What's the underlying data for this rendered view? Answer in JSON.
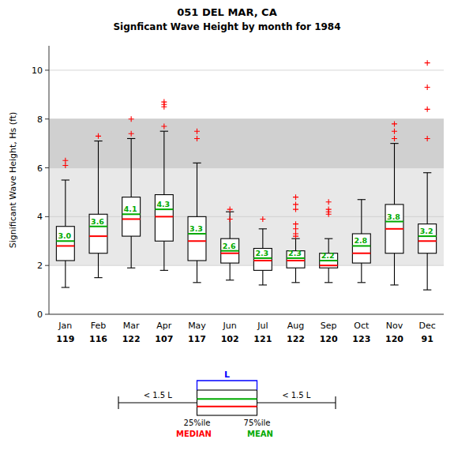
{
  "chart_data": {
    "type": "box",
    "title": "051   DEL MAR, CA",
    "subtitle": "Signficant Wave Height by month for 1984",
    "y_label": "Significant Wave Height, Hs (ft)",
    "categories": [
      "Jan",
      "Feb",
      "Mar",
      "Apr",
      "May",
      "Jun",
      "Jul",
      "Aug",
      "Sep",
      "Oct",
      "Nov",
      "Dec"
    ],
    "counts": [
      119,
      116,
      122,
      107,
      117,
      102,
      121,
      122,
      120,
      123,
      120,
      91
    ],
    "boxes": [
      {
        "q1": 2.2,
        "median": 2.8,
        "q3": 3.6,
        "whislo": 1.1,
        "whishi": 5.5,
        "mean": 3.0,
        "mean_label": "3.0",
        "fliers": [
          6.3,
          6.1
        ]
      },
      {
        "q1": 2.5,
        "median": 3.2,
        "q3": 4.1,
        "whislo": 1.5,
        "whishi": 7.1,
        "mean": 3.6,
        "mean_label": "3.6",
        "fliers": [
          7.3
        ]
      },
      {
        "q1": 3.2,
        "median": 3.9,
        "q3": 4.8,
        "whislo": 1.9,
        "whishi": 7.2,
        "mean": 4.1,
        "mean_label": "4.1",
        "fliers": [
          7.4,
          8.0
        ]
      },
      {
        "q1": 3.0,
        "median": 4.0,
        "q3": 4.9,
        "whislo": 1.8,
        "whishi": 7.5,
        "mean": 4.3,
        "mean_label": "4.3",
        "fliers": [
          7.7,
          8.5,
          8.6,
          8.7
        ]
      },
      {
        "q1": 2.2,
        "median": 3.0,
        "q3": 4.0,
        "whislo": 1.3,
        "whishi": 6.2,
        "mean": 3.3,
        "mean_label": "3.3",
        "fliers": [
          7.5,
          7.2
        ]
      },
      {
        "q1": 2.1,
        "median": 2.5,
        "q3": 3.1,
        "whislo": 1.4,
        "whishi": 4.2,
        "mean": 2.6,
        "mean_label": "2.6",
        "fliers": [
          4.3,
          3.9
        ]
      },
      {
        "q1": 1.8,
        "median": 2.2,
        "q3": 2.7,
        "whislo": 1.2,
        "whishi": 3.5,
        "mean": 2.3,
        "mean_label": "2.3",
        "fliers": [
          3.9
        ]
      },
      {
        "q1": 1.9,
        "median": 2.2,
        "q3": 2.6,
        "whislo": 1.3,
        "whishi": 3.1,
        "mean": 2.3,
        "mean_label": "2.3",
        "fliers": [
          4.8,
          4.5,
          4.3,
          3.7,
          3.5,
          3.3,
          3.2
        ]
      },
      {
        "q1": 1.9,
        "median": 2.0,
        "q3": 2.5,
        "whislo": 1.3,
        "whishi": 3.1,
        "mean": 2.2,
        "mean_label": "2.2",
        "fliers": [
          4.6,
          4.3,
          4.2,
          4.1
        ]
      },
      {
        "q1": 2.1,
        "median": 2.5,
        "q3": 3.3,
        "whislo": 1.3,
        "whishi": 4.7,
        "mean": 2.8,
        "mean_label": "2.8",
        "fliers": []
      },
      {
        "q1": 2.5,
        "median": 3.5,
        "q3": 4.5,
        "whislo": 1.2,
        "whishi": 7.0,
        "mean": 3.8,
        "mean_label": "3.8",
        "fliers": [
          7.8,
          7.5,
          7.2
        ]
      },
      {
        "q1": 2.5,
        "median": 3.0,
        "q3": 3.7,
        "whislo": 1.0,
        "whishi": 5.8,
        "mean": 3.2,
        "mean_label": "3.2",
        "fliers": [
          7.2,
          10.3,
          9.3,
          8.4
        ]
      }
    ],
    "bands": [
      {
        "y": [
          2.0,
          6.0
        ],
        "color": "#e8e8e8"
      },
      {
        "y": [
          6.0,
          8.0
        ],
        "color": "#d0d0d0"
      }
    ],
    "median_color": "#ff0000",
    "mean_color": "#00aa00",
    "flier_color": "#ff0000",
    "ylim": [
      0,
      11
    ],
    "yticks": [
      0,
      2,
      4,
      6,
      8,
      10
    ],
    "grid": true,
    "legend_key": {
      "iqr": "L",
      "whisker": "< 1.5 L",
      "lower": "25%ile",
      "upper": "75%ile",
      "median": "MEDIAN",
      "mean": "MEAN",
      "color": "#0000ff"
    }
  }
}
